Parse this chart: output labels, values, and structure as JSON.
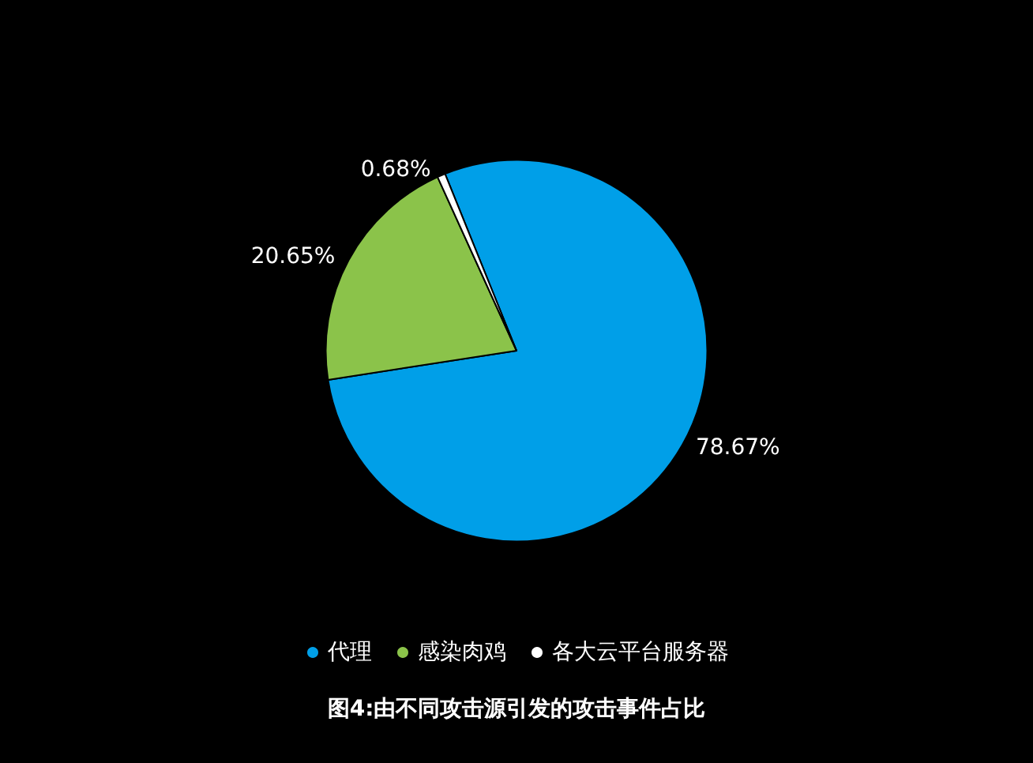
{
  "chart_data": {
    "type": "pie",
    "categories": [
      "代理",
      "感染肉鸡",
      "各大云平台服务器"
    ],
    "values": [
      78.67,
      20.65,
      0.68
    ],
    "colors": [
      "#009fe8",
      "#8bc34a",
      "#ffffff"
    ],
    "value_labels": [
      "78.67%",
      "20.65%",
      "0.68%"
    ],
    "legend": "bottom",
    "annotations": [
      "图4:由不同攻击源引发的攻击事件占比"
    ]
  }
}
